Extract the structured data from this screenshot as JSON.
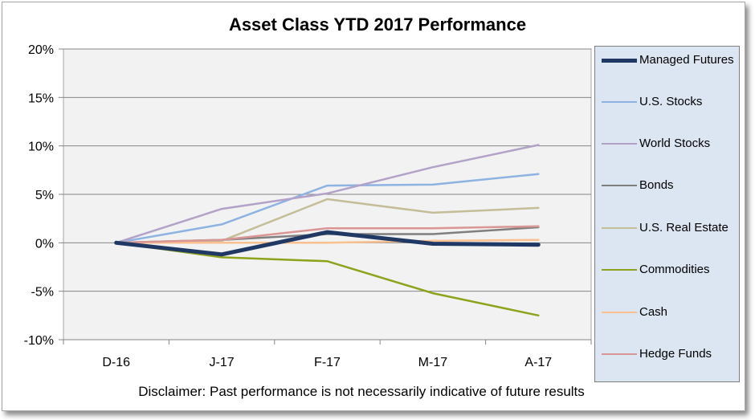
{
  "chart_data": {
    "type": "line",
    "title": "Asset Class YTD 2017 Performance",
    "xlabel": "",
    "ylabel": "",
    "categories": [
      "D-16",
      "J-17",
      "F-17",
      "M-17",
      "A-17"
    ],
    "y_tick_labels": [
      "20%",
      "15%",
      "10%",
      "5%",
      "0%",
      "-5%",
      "-10%"
    ],
    "ylim": [
      -10,
      20
    ],
    "grid": true,
    "legend_position": "right",
    "series": [
      {
        "name": "Managed Futures",
        "color": "#1f3864",
        "width": 5,
        "values": [
          0,
          -1.2,
          1.1,
          -0.1,
          -0.2
        ]
      },
      {
        "name": "U.S. Stocks",
        "color": "#8db3e2",
        "width": 2.5,
        "values": [
          0,
          1.9,
          5.9,
          6.0,
          7.1
        ]
      },
      {
        "name": "World Stocks",
        "color": "#b3a2c7",
        "width": 2.5,
        "values": [
          0,
          3.5,
          5.1,
          7.8,
          10.1
        ]
      },
      {
        "name": "Bonds",
        "color": "#7f7f7f",
        "width": 2.5,
        "values": [
          0,
          0.3,
          0.9,
          0.9,
          1.6
        ]
      },
      {
        "name": "U.S. Real Estate",
        "color": "#c4bd97",
        "width": 2.5,
        "values": [
          0,
          0.2,
          4.5,
          3.1,
          3.6
        ]
      },
      {
        "name": "Commodities",
        "color": "#8ea21b",
        "width": 2.5,
        "values": [
          0,
          -1.5,
          -1.9,
          -5.2,
          -7.5
        ]
      },
      {
        "name": "Cash",
        "color": "#fac090",
        "width": 2.5,
        "values": [
          0,
          0.0,
          0.0,
          0.2,
          0.3
        ]
      },
      {
        "name": "Hedge Funds",
        "color": "#d99694",
        "width": 2.5,
        "values": [
          0,
          0.3,
          1.5,
          1.5,
          1.7
        ]
      }
    ]
  },
  "legend": {
    "items": [
      {
        "label": "Managed Futures",
        "color": "#1f3864",
        "width": 5
      },
      {
        "label": "U.S. Stocks",
        "color": "#8db3e2",
        "width": 2.5
      },
      {
        "label": "World Stocks",
        "color": "#b3a2c7",
        "width": 2.5
      },
      {
        "label": "Bonds",
        "color": "#7f7f7f",
        "width": 2.5
      },
      {
        "label": "U.S. Real Estate",
        "color": "#c4bd97",
        "width": 2.5
      },
      {
        "label": "Commodities",
        "color": "#8ea21b",
        "width": 2.5
      },
      {
        "label": "Cash",
        "color": "#fac090",
        "width": 2.5
      },
      {
        "label": "Hedge Funds",
        "color": "#d99694",
        "width": 2.5
      }
    ]
  },
  "disclaimer": "Disclaimer: Past performance is not necessarily indicative of future results"
}
